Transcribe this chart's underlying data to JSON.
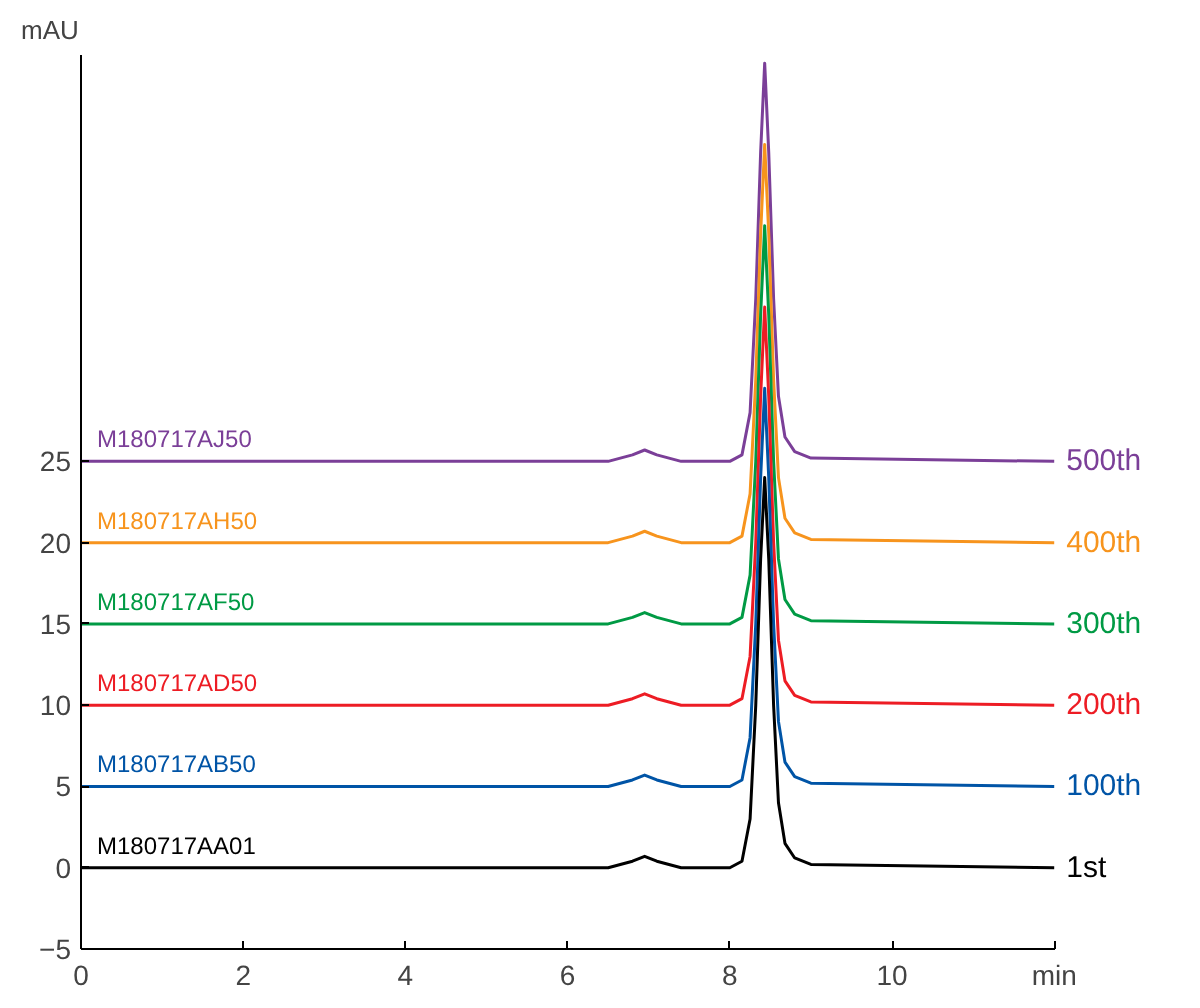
{
  "chart_data": {
    "type": "line",
    "ylabel": "mAU",
    "x": [
      0,
      6.5,
      6.8,
      6.95,
      7.1,
      7.4,
      8.0,
      8.15,
      8.25,
      8.32,
      8.38,
      8.43,
      8.48,
      8.54,
      8.6,
      8.68,
      8.8,
      9.0,
      12
    ],
    "series": [
      {
        "name": "500th",
        "color": "#7b3f98",
        "values": [
          25,
          25,
          25.4,
          25.7,
          25.4,
          25,
          25,
          25.4,
          28,
          35,
          44,
          49.5,
          44,
          35,
          29,
          26.5,
          25.6,
          25.2,
          25
        ]
      },
      {
        "name": "400th",
        "color": "#f7941d",
        "values": [
          20,
          20,
          20.4,
          20.7,
          20.4,
          20,
          20,
          20.4,
          23,
          30,
          39,
          44.5,
          39,
          30,
          24,
          21.5,
          20.6,
          20.2,
          20
        ]
      },
      {
        "name": "300th",
        "color": "#009a44",
        "values": [
          15,
          15,
          15.4,
          15.7,
          15.4,
          15,
          15,
          15.4,
          18,
          25,
          34,
          39.5,
          34,
          25,
          19,
          16.5,
          15.6,
          15.2,
          15
        ]
      },
      {
        "name": "200th",
        "color": "#ed1c24",
        "values": [
          10,
          10,
          10.4,
          10.7,
          10.4,
          10,
          10,
          10.4,
          13,
          20,
          29,
          34.5,
          29,
          20,
          14,
          11.5,
          10.6,
          10.2,
          10
        ]
      },
      {
        "name": "100th",
        "color": "#0054a6",
        "values": [
          5,
          5,
          5.4,
          5.7,
          5.4,
          5,
          5,
          5.4,
          8,
          15,
          24,
          29.5,
          24,
          15,
          9,
          6.5,
          5.6,
          5.2,
          5
        ]
      },
      {
        "name": "1st",
        "color": "#000000",
        "values": [
          0,
          0,
          0.4,
          0.7,
          0.4,
          0,
          0,
          0.4,
          3,
          10,
          19,
          24,
          19,
          10,
          4,
          1.5,
          0.6,
          0.2,
          0
        ]
      }
    ],
    "annotations": [
      "M180717AJ50",
      "M180717AH50",
      "M180717AF50",
      "M180717AD50",
      "M180717AB50",
      "M180717AA01"
    ],
    "xlim": [
      0,
      12
    ],
    "xticks": [
      0,
      2,
      4,
      6,
      8,
      10,
      {
        "value": 12,
        "label": "min"
      }
    ],
    "ylim": [
      -5,
      50
    ],
    "yticks": [
      -5,
      0,
      5,
      10,
      15,
      20,
      25
    ],
    "grid": false,
    "legend": false,
    "marker": "none",
    "line_style": "solid"
  }
}
